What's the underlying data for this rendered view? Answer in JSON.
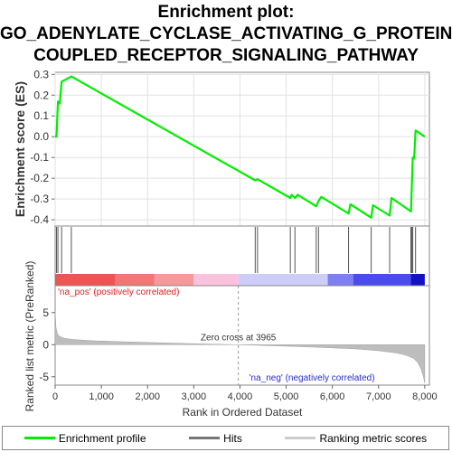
{
  "title_lines": [
    "Enrichment plot:",
    "GO_ADENYLATE_CYCLASE_ACTIVATING_G_PROTEIN_",
    "COUPLED_RECEPTOR_SIGNALING_PATHWAY"
  ],
  "legend": [
    {
      "label": "Enrichment profile",
      "color": "#00ee00",
      "kind": "profile"
    },
    {
      "label": "Hits",
      "color": "#777777",
      "kind": "hits"
    },
    {
      "label": "Ranking metric scores",
      "color": "#cccccc",
      "kind": "metric"
    }
  ],
  "chart_data": {
    "type": "line",
    "xlabel": "Rank in Ordered Dataset",
    "x_ticks": [
      "0",
      "1,000",
      "2,000",
      "3,000",
      "4,000",
      "5,000",
      "6,000",
      "7,000",
      "8,000"
    ],
    "x_tick_values": [
      0,
      1000,
      2000,
      3000,
      4000,
      5000,
      6000,
      7000,
      8000
    ],
    "xlim": [
      0,
      8100
    ],
    "es_panel": {
      "ylabel": "Enrichment score (ES)",
      "ylim": [
        -0.43,
        0.31
      ],
      "y_ticks": [
        "0.3",
        "0.2",
        "0.1",
        "0.0",
        "-0.1",
        "-0.2",
        "-0.3",
        "-0.4"
      ],
      "y_tick_values": [
        0.3,
        0.2,
        0.1,
        0.0,
        -0.1,
        -0.2,
        -0.3,
        -0.4
      ],
      "series": {
        "name": "Enrichment profile",
        "color": "#00ee00",
        "x": [
          0,
          30,
          60,
          100,
          140,
          350,
          4330,
          4380,
          5090,
          5120,
          5190,
          5250,
          5650,
          5700,
          5760,
          6350,
          6390,
          6840,
          6880,
          7240,
          7280,
          7700,
          7720,
          7740,
          7770,
          7800,
          8000
        ],
        "y": [
          0.0,
          0.0,
          0.17,
          0.16,
          0.265,
          0.29,
          -0.21,
          -0.205,
          -0.295,
          -0.28,
          -0.295,
          -0.28,
          -0.335,
          -0.31,
          -0.29,
          -0.37,
          -0.325,
          -0.39,
          -0.33,
          -0.38,
          -0.295,
          -0.36,
          -0.23,
          -0.1,
          -0.105,
          0.03,
          0.0
        ]
      }
    },
    "hits": [
      30,
      60,
      140,
      350,
      4330,
      4380,
      5090,
      5190,
      5650,
      5700,
      6350,
      6840,
      7240,
      7700,
      7720,
      7740,
      7800
    ],
    "heat_bar": [
      {
        "from": 0,
        "to": 1300,
        "color": "#ef5454"
      },
      {
        "from": 1300,
        "to": 2150,
        "color": "#f27676"
      },
      {
        "from": 2150,
        "to": 3000,
        "color": "#f59a9a"
      },
      {
        "from": 3000,
        "to": 3965,
        "color": "#fbc2de"
      },
      {
        "from": 3965,
        "to": 5900,
        "color": "#cccdf8"
      },
      {
        "from": 5900,
        "to": 6450,
        "color": "#7f7ff2"
      },
      {
        "from": 6450,
        "to": 7700,
        "color": "#4c4cee"
      },
      {
        "from": 7700,
        "to": 8000,
        "color": "#1212c0"
      }
    ],
    "metric_panel": {
      "ylabel": "Ranked list metric (PreRanked)",
      "ylim": [
        -6.3,
        9.2
      ],
      "y_ticks": [
        "5",
        "0",
        "-5"
      ],
      "y_tick_values": [
        5,
        0,
        -5
      ],
      "zero_cross": 3965,
      "zero_cross_label": "Zero cross at 3965",
      "pos_label": "'na_pos' (positively correlated)",
      "neg_label": "'na_neg' (negatively correlated)",
      "x": [
        0,
        20,
        50,
        100,
        200,
        400,
        800,
        1500,
        2500,
        3500,
        3965,
        4500,
        5500,
        6500,
        7000,
        7400,
        7600,
        7750,
        7850,
        7920,
        7970,
        8000
      ],
      "y": [
        5.2,
        2.6,
        1.7,
        1.3,
        1.0,
        0.8,
        0.62,
        0.45,
        0.25,
        0.07,
        0.0,
        -0.12,
        -0.35,
        -0.65,
        -0.95,
        -1.3,
        -1.65,
        -2.1,
        -2.8,
        -3.8,
        -5.0,
        -6.0
      ]
    }
  }
}
